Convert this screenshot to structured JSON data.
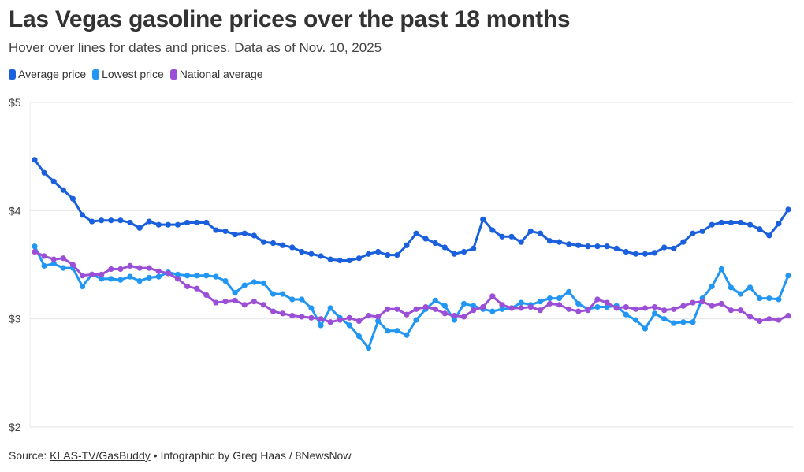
{
  "title": "Las Vegas gasoline prices over the past 18 months",
  "subtitle": "Hover over lines for dates and prices. Data as of Nov. 10, 2025",
  "source": {
    "prefix": "Source: ",
    "link": "KLAS-TV/GasBuddy",
    "suffix": " • Infographic by Greg Haas / 8NewsNow"
  },
  "chart_data": {
    "type": "line",
    "title": "Las Vegas gasoline prices over the past 18 months",
    "ylim": [
      2,
      5
    ],
    "yticks": [
      {
        "v": 5,
        "label": "$5"
      },
      {
        "v": 4,
        "label": "$4"
      },
      {
        "v": 3,
        "label": "$3"
      },
      {
        "v": 2,
        "label": "$2"
      }
    ],
    "grid": true,
    "legend": "top-left",
    "series": [
      {
        "name": "Average price",
        "color": "#1a5fdc",
        "values": [
          4.47,
          4.35,
          4.27,
          4.19,
          4.11,
          3.96,
          3.9,
          3.91,
          3.91,
          3.91,
          3.89,
          3.84,
          3.9,
          3.87,
          3.87,
          3.87,
          3.89,
          3.89,
          3.89,
          3.82,
          3.81,
          3.78,
          3.79,
          3.77,
          3.71,
          3.7,
          3.68,
          3.66,
          3.62,
          3.6,
          3.58,
          3.55,
          3.54,
          3.54,
          3.56,
          3.6,
          3.62,
          3.59,
          3.59,
          3.68,
          3.79,
          3.74,
          3.7,
          3.66,
          3.6,
          3.62,
          3.65,
          3.92,
          3.82,
          3.76,
          3.76,
          3.71,
          3.81,
          3.79,
          3.72,
          3.71,
          3.69,
          3.68,
          3.67,
          3.67,
          3.67,
          3.65,
          3.62,
          3.6,
          3.6,
          3.61,
          3.66,
          3.65,
          3.71,
          3.79,
          3.81,
          3.87,
          3.89,
          3.89,
          3.89,
          3.87,
          3.83,
          3.77,
          3.88,
          4.01
        ]
      },
      {
        "name": "Lowest price",
        "color": "#2196f3",
        "values": [
          3.67,
          3.49,
          3.51,
          3.47,
          3.47,
          3.3,
          3.41,
          3.37,
          3.37,
          3.36,
          3.39,
          3.35,
          3.38,
          3.39,
          3.43,
          3.41,
          3.4,
          3.4,
          3.4,
          3.39,
          3.35,
          3.24,
          3.31,
          3.34,
          3.33,
          3.23,
          3.23,
          3.18,
          3.18,
          3.1,
          2.94,
          3.1,
          3.01,
          2.94,
          2.84,
          2.73,
          2.98,
          2.89,
          2.89,
          2.85,
          2.99,
          3.09,
          3.17,
          3.12,
          2.99,
          3.14,
          3.12,
          3.09,
          3.07,
          3.09,
          3.1,
          3.15,
          3.13,
          3.16,
          3.19,
          3.19,
          3.25,
          3.14,
          3.09,
          3.11,
          3.11,
          3.12,
          3.04,
          2.99,
          2.91,
          3.05,
          3.0,
          2.96,
          2.97,
          2.97,
          3.19,
          3.3,
          3.46,
          3.29,
          3.23,
          3.29,
          3.19,
          3.19,
          3.18,
          3.4
        ]
      },
      {
        "name": "National average",
        "color": "#9b4fd6",
        "values": [
          3.62,
          3.58,
          3.55,
          3.56,
          3.5,
          3.4,
          3.41,
          3.41,
          3.46,
          3.46,
          3.49,
          3.47,
          3.47,
          3.44,
          3.42,
          3.37,
          3.3,
          3.28,
          3.22,
          3.15,
          3.16,
          3.17,
          3.13,
          3.16,
          3.13,
          3.07,
          3.05,
          3.03,
          3.02,
          3.01,
          3.0,
          2.97,
          2.99,
          3.01,
          2.98,
          3.03,
          3.02,
          3.09,
          3.09,
          3.04,
          3.09,
          3.11,
          3.09,
          3.05,
          3.03,
          3.02,
          3.08,
          3.11,
          3.21,
          3.13,
          3.1,
          3.1,
          3.11,
          3.08,
          3.14,
          3.13,
          3.09,
          3.07,
          3.08,
          3.18,
          3.15,
          3.1,
          3.11,
          3.09,
          3.1,
          3.11,
          3.08,
          3.09,
          3.12,
          3.15,
          3.16,
          3.12,
          3.14,
          3.08,
          3.08,
          3.02,
          2.98,
          3.0,
          2.99,
          3.03
        ]
      }
    ]
  }
}
